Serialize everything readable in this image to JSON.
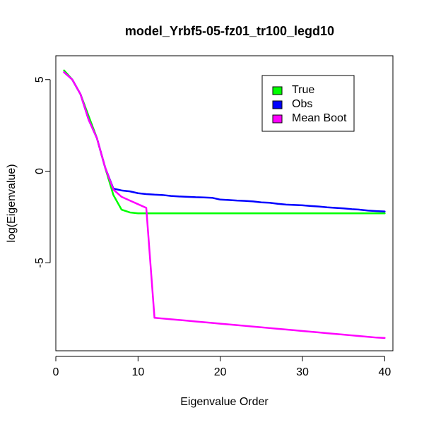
{
  "chart_data": {
    "type": "line",
    "title": "model_Yrbf5-05-fz01_tr100_legd10",
    "xlabel": "Eigenvalue Order",
    "ylabel": "log(Eigenvalue)",
    "xlim": [
      0,
      41
    ],
    "ylim": [
      -9.8,
      6.3
    ],
    "x_ticks": [
      0,
      10,
      20,
      30,
      40
    ],
    "y_ticks": [
      -5,
      0,
      5
    ],
    "legend_position": "top-right",
    "series": [
      {
        "name": "True",
        "color": "#00ff00",
        "x": [
          1,
          2,
          3,
          4,
          5,
          6,
          7,
          8,
          9,
          10,
          11,
          12,
          13,
          14,
          15,
          16,
          17,
          18,
          19,
          20,
          21,
          22,
          23,
          24,
          25,
          26,
          27,
          28,
          29,
          30,
          31,
          32,
          33,
          34,
          35,
          36,
          37,
          38,
          39,
          40
        ],
        "values": [
          5.5,
          5.0,
          4.2,
          3.0,
          1.8,
          0.2,
          -1.3,
          -2.1,
          -2.25,
          -2.3,
          -2.3,
          -2.3,
          -2.3,
          -2.3,
          -2.3,
          -2.3,
          -2.3,
          -2.3,
          -2.3,
          -2.3,
          -2.3,
          -2.3,
          -2.3,
          -2.3,
          -2.3,
          -2.3,
          -2.3,
          -2.3,
          -2.3,
          -2.3,
          -2.3,
          -2.3,
          -2.3,
          -2.3,
          -2.3,
          -2.3,
          -2.3,
          -2.3,
          -2.3,
          -2.3
        ]
      },
      {
        "name": "Obs",
        "color": "#0000ff",
        "x": [
          1,
          2,
          3,
          4,
          5,
          6,
          7,
          8,
          9,
          10,
          11,
          12,
          13,
          14,
          15,
          16,
          17,
          18,
          19,
          20,
          21,
          22,
          23,
          24,
          25,
          26,
          27,
          28,
          29,
          30,
          31,
          32,
          33,
          34,
          35,
          36,
          37,
          38,
          39,
          40
        ],
        "values": [
          5.4,
          5.0,
          4.2,
          2.8,
          1.8,
          0.2,
          -0.95,
          -1.05,
          -1.1,
          -1.2,
          -1.25,
          -1.28,
          -1.3,
          -1.35,
          -1.38,
          -1.4,
          -1.42,
          -1.43,
          -1.45,
          -1.55,
          -1.57,
          -1.6,
          -1.62,
          -1.65,
          -1.7,
          -1.72,
          -1.78,
          -1.82,
          -1.84,
          -1.86,
          -1.9,
          -1.93,
          -1.97,
          -2.0,
          -2.03,
          -2.07,
          -2.1,
          -2.15,
          -2.18,
          -2.2
        ]
      },
      {
        "name": "Mean Boot",
        "color": "#ff00ff",
        "x": [
          1,
          2,
          3,
          4,
          5,
          6,
          7,
          8,
          9,
          10,
          11,
          12,
          13,
          14,
          15,
          16,
          17,
          18,
          19,
          20,
          21,
          22,
          23,
          24,
          25,
          26,
          27,
          28,
          29,
          30,
          31,
          32,
          33,
          34,
          35,
          36,
          37,
          38,
          39,
          40
        ],
        "values": [
          5.4,
          5.0,
          4.2,
          2.8,
          1.8,
          0.2,
          -1.0,
          -1.4,
          -1.6,
          -1.8,
          -2.0,
          -8.0,
          -8.04,
          -8.08,
          -8.12,
          -8.16,
          -8.2,
          -8.24,
          -8.28,
          -8.32,
          -8.36,
          -8.4,
          -8.44,
          -8.48,
          -8.52,
          -8.56,
          -8.6,
          -8.64,
          -8.68,
          -8.72,
          -8.76,
          -8.8,
          -8.84,
          -8.88,
          -8.92,
          -8.96,
          -9.0,
          -9.04,
          -9.08,
          -9.1
        ]
      }
    ]
  }
}
